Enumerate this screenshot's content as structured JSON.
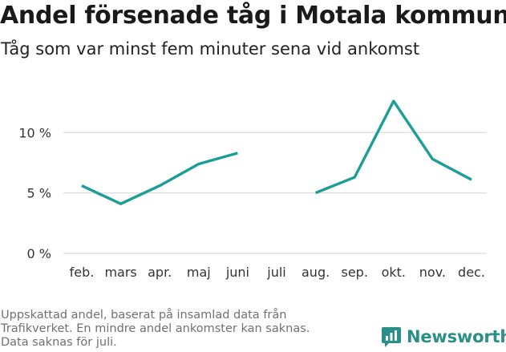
{
  "title": "Andel försenade tåg i Motala kommun",
  "subtitle": "Tåg som var minst fem minuter sena vid ankomst",
  "footnote": [
    "Uppskattad andel, baserat på insamlad data från",
    "Trafikverket. En mindre andel ankomster kan saknas.",
    "Data saknas för juli."
  ],
  "brand": {
    "name": "Newsworthy",
    "icon": "newsworthy-logo-icon",
    "color": "#2a8f88"
  },
  "chart_data": {
    "type": "line",
    "title": "Andel försenade tåg i Motala kommun",
    "subtitle": "Tåg som var minst fem minuter sena vid ankomst",
    "categories": [
      "feb.",
      "mars",
      "apr.",
      "maj",
      "juni",
      "juli",
      "aug.",
      "sep.",
      "okt.",
      "nov.",
      "dec."
    ],
    "series": [
      {
        "values": [
          5.6,
          4.1,
          5.6,
          7.4,
          8.3,
          null,
          5.0,
          6.3,
          12.6,
          7.8,
          6.1
        ]
      }
    ],
    "y_ticks": [
      0,
      5,
      10
    ],
    "y_tick_labels": [
      "0 %",
      "5 %",
      "10 %"
    ],
    "ylim": [
      0,
      14
    ],
    "grid": true,
    "line_color": "#1a9e96",
    "grid_color": "#dcdcdc"
  }
}
